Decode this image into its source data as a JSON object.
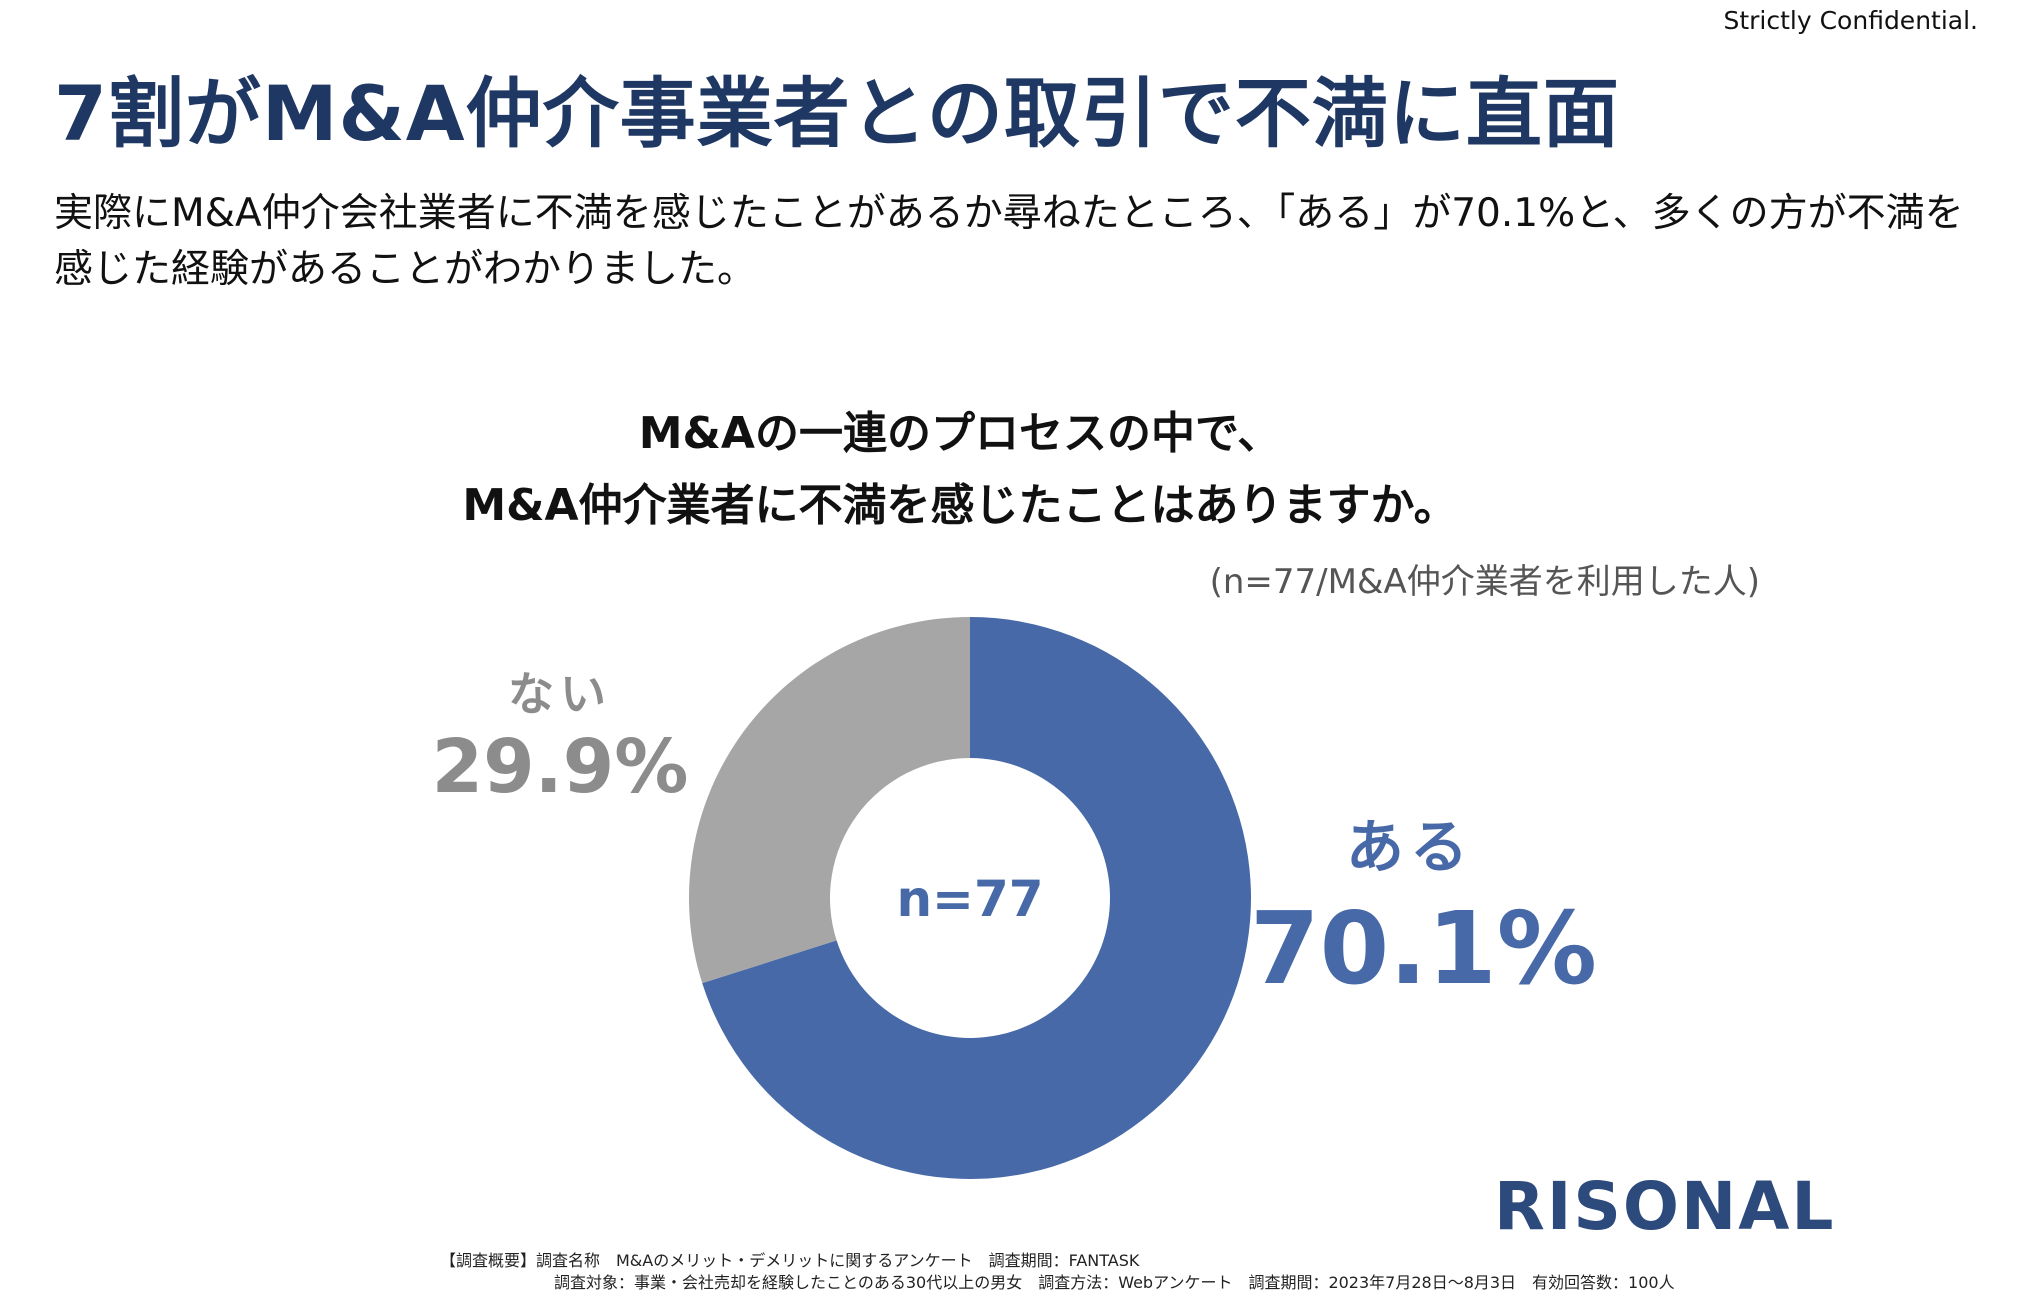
{
  "header": {
    "confidential": "Strictly Confidential.",
    "title": "7割がM&A仲介事業者との取引で不満に直面",
    "lead": "実際にM&A仲介会社業者に不満を感じたことがあるか尋ねたところ、「ある」が70.1%と、多くの方が不満を感じた経験があることがわかりました。"
  },
  "chart_data": {
    "type": "pie",
    "title_line1": "M&Aの一連のプロセスの中で、",
    "title_line2": "M&A仲介業者に不満を感じたことはありますか。",
    "note": "(n=77/M&A仲介業者を利用した人)",
    "center_label": "n=77",
    "slices": [
      {
        "label": "ある",
        "value": 70.1,
        "value_label": "70.1%",
        "color": "#4769a8"
      },
      {
        "label": "ない",
        "value": 29.9,
        "value_label": "29.9%",
        "color": "#a6a6a6"
      }
    ]
  },
  "logo": "RISONAL",
  "footer": {
    "line1": "【調査概要】調査名称　M&Aのメリット・デメリットに関するアンケート　調査期間：FANTASK",
    "line2": "調査対象：事業・会社売却を経験したことのある30代以上の男女　調査方法：Webアンケート　調査期間：2023年7月28日〜8月3日　有効回答数：100人"
  }
}
